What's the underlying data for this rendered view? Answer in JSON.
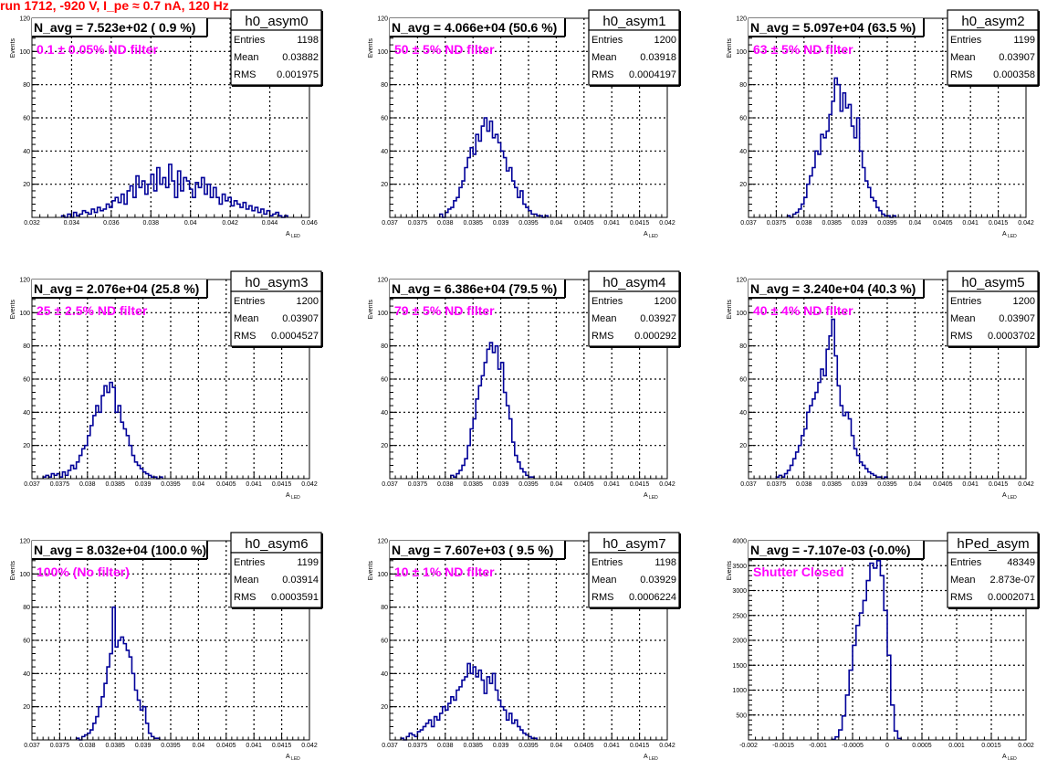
{
  "page": {
    "run_title": "run 1712,  -920 V, I_pe ≈ 0.7 nA, 120 Hz"
  },
  "style": {
    "hist_color": "#000099",
    "label_color": "#ff00ff",
    "title_color": "#ff0000"
  },
  "chart_data": [
    {
      "type": "histogram",
      "name": "h0_asym0",
      "nlabel": "N_avg = 7.523e+02 ( 0.9 %)",
      "filter_label": "0.1 ± 0.05% ND filter",
      "stats": {
        "entries_label": "Entries",
        "entries": "1198",
        "mean_label": "Mean",
        "mean": "0.03882",
        "rms_label": "RMS",
        "rms": "0.001975"
      },
      "xlabel": "A_LED",
      "ylabel": "Events",
      "xlim": [
        0.032,
        0.046
      ],
      "ylim": [
        0,
        120
      ],
      "xticks": [
        0.032,
        0.034,
        0.036,
        0.038,
        0.04,
        0.042,
        0.044,
        0.046
      ],
      "xticklabels": [
        "0.032",
        "0.034",
        "0.036",
        "0.038",
        "0.04",
        "0.042",
        "0.044",
        "0.046"
      ],
      "yticks": [
        20,
        40,
        60,
        80,
        100,
        120
      ],
      "yticklabels": [
        "20",
        "40",
        "60",
        "80",
        "100",
        "120"
      ],
      "bin_start": 0.0335,
      "bin_width": 0.00015,
      "values": [
        1,
        0,
        2,
        0,
        3,
        1,
        2,
        4,
        3,
        2,
        5,
        3,
        6,
        4,
        5,
        8,
        6,
        10,
        12,
        9,
        14,
        8,
        16,
        19,
        12,
        25,
        18,
        22,
        14,
        20,
        26,
        16,
        30,
        20,
        24,
        18,
        32,
        22,
        12,
        28,
        16,
        24,
        22,
        17,
        12,
        21,
        18,
        24,
        14,
        20,
        12,
        18,
        12,
        8,
        14,
        10,
        12,
        7,
        10,
        8,
        6,
        9,
        5,
        7,
        4,
        6,
        3,
        5,
        2,
        4,
        1,
        2,
        3,
        1,
        0,
        1
      ]
    },
    {
      "type": "histogram",
      "name": "h0_asym1",
      "nlabel": "N_avg = 4.066e+04 (50.6 %)",
      "filter_label": "50 ± 5% ND filter",
      "stats": {
        "entries_label": "Entries",
        "entries": "1200",
        "mean_label": "Mean",
        "mean": "0.03918",
        "rms_label": "RMS",
        "rms": "0.0004197"
      },
      "xlabel": "A_LED",
      "ylabel": "Events",
      "xlim": [
        0.037,
        0.042
      ],
      "ylim": [
        0,
        120
      ],
      "xticks": [
        0.037,
        0.0375,
        0.038,
        0.0385,
        0.039,
        0.0395,
        0.04,
        0.0405,
        0.041,
        0.0415,
        0.042
      ],
      "xticklabels": [
        "0.037",
        "0.0375",
        "0.038",
        "0.0385",
        "0.039",
        "0.0395",
        "0.04",
        "0.0405",
        "0.041",
        "0.0415",
        "0.042"
      ],
      "yticks": [
        20,
        40,
        60,
        80,
        100,
        120
      ],
      "yticklabels": [
        "20",
        "40",
        "60",
        "80",
        "100",
        "120"
      ],
      "bin_start": 0.0379,
      "bin_width": 5e-05,
      "values": [
        2,
        0,
        3,
        5,
        6,
        10,
        12,
        18,
        22,
        30,
        36,
        42,
        38,
        50,
        46,
        55,
        60,
        52,
        58,
        48,
        50,
        45,
        40,
        36,
        28,
        30,
        22,
        18,
        12,
        16,
        8,
        6,
        4,
        2,
        2,
        1,
        1,
        0,
        1
      ]
    },
    {
      "type": "histogram",
      "name": "h0_asym2",
      "nlabel": "N_avg = 5.097e+04 (63.5 %)",
      "filter_label": "63 ± 5% ND filter",
      "stats": {
        "entries_label": "Entries",
        "entries": "1199",
        "mean_label": "Mean",
        "mean": "0.03907",
        "rms_label": "RMS",
        "rms": "0.000358"
      },
      "xlabel": "A_LED",
      "ylabel": "Events",
      "xlim": [
        0.037,
        0.042
      ],
      "ylim": [
        0,
        120
      ],
      "xticks": [
        0.037,
        0.0375,
        0.038,
        0.0385,
        0.039,
        0.0395,
        0.04,
        0.0405,
        0.041,
        0.0415,
        0.042
      ],
      "xticklabels": [
        "0.037",
        "0.0375",
        "0.038",
        "0.0385",
        "0.039",
        "0.0395",
        "0.04",
        "0.0405",
        "0.041",
        "0.0415",
        "0.042"
      ],
      "yticks": [
        20,
        40,
        60,
        80,
        100,
        120
      ],
      "yticklabels": [
        "20",
        "40",
        "60",
        "80",
        "100",
        "120"
      ],
      "bin_start": 0.0377,
      "bin_width": 5e-05,
      "values": [
        1,
        0,
        2,
        3,
        5,
        8,
        12,
        20,
        25,
        30,
        40,
        38,
        50,
        48,
        52,
        62,
        70,
        84,
        80,
        64,
        75,
        66,
        68,
        55,
        48,
        60,
        40,
        30,
        22,
        18,
        12,
        10,
        6,
        4,
        2,
        1,
        1,
        0,
        1
      ]
    },
    {
      "type": "histogram",
      "name": "h0_asym3",
      "nlabel": "N_avg = 2.076e+04 (25.8 %)",
      "filter_label": "25 ± 2.5% ND filter",
      "stats": {
        "entries_label": "Entries",
        "entries": "1200",
        "mean_label": "Mean",
        "mean": "0.03907",
        "rms_label": "RMS",
        "rms": "0.0004527"
      },
      "xlabel": "A_LED",
      "ylabel": "Events",
      "xlim": [
        0.037,
        0.042
      ],
      "ylim": [
        0,
        120
      ],
      "xticks": [
        0.037,
        0.0375,
        0.038,
        0.0385,
        0.039,
        0.0395,
        0.04,
        0.0405,
        0.041,
        0.0415,
        0.042
      ],
      "xticklabels": [
        "0.037",
        "0.0375",
        "0.038",
        "0.0385",
        "0.039",
        "0.0395",
        "0.04",
        "0.0405",
        "0.041",
        "0.0415",
        "0.042"
      ],
      "yticks": [
        20,
        40,
        60,
        80,
        100,
        120
      ],
      "yticklabels": [
        "20",
        "40",
        "60",
        "80",
        "100",
        "120"
      ],
      "bin_start": 0.0372,
      "bin_width": 5e-05,
      "values": [
        1,
        2,
        1,
        3,
        2,
        3,
        1,
        4,
        2,
        5,
        8,
        6,
        10,
        14,
        18,
        20,
        26,
        32,
        38,
        44,
        40,
        50,
        56,
        52,
        58,
        55,
        40,
        44,
        34,
        30,
        26,
        20,
        14,
        10,
        8,
        6,
        4,
        3,
        2,
        1,
        1,
        0,
        1
      ]
    },
    {
      "type": "histogram",
      "name": "h0_asym4",
      "nlabel": "N_avg = 6.386e+04 (79.5 %)",
      "filter_label": "79 ± 5% ND filter",
      "stats": {
        "entries_label": "Entries",
        "entries": "1200",
        "mean_label": "Mean",
        "mean": "0.03927",
        "rms_label": "RMS",
        "rms": "0.000292"
      },
      "xlabel": "A_LED",
      "ylabel": "Events",
      "xlim": [
        0.037,
        0.042
      ],
      "ylim": [
        0,
        120
      ],
      "xticks": [
        0.037,
        0.0375,
        0.038,
        0.0385,
        0.039,
        0.0395,
        0.04,
        0.0405,
        0.041,
        0.0415,
        0.042
      ],
      "xticklabels": [
        "0.037",
        "0.0375",
        "0.038",
        "0.0385",
        "0.039",
        "0.0395",
        "0.04",
        "0.0405",
        "0.041",
        "0.0415",
        "0.042"
      ],
      "yticks": [
        20,
        40,
        60,
        80,
        100,
        120
      ],
      "yticklabels": [
        "20",
        "40",
        "60",
        "80",
        "100",
        "120"
      ],
      "bin_start": 0.0381,
      "bin_width": 5e-05,
      "values": [
        2,
        1,
        3,
        5,
        8,
        12,
        20,
        30,
        36,
        48,
        56,
        62,
        70,
        78,
        82,
        76,
        80,
        66,
        70,
        52,
        44,
        36,
        22,
        14,
        10,
        6,
        4,
        2,
        1,
        1
      ]
    },
    {
      "type": "histogram",
      "name": "h0_asym5",
      "nlabel": "N_avg = 3.240e+04 (40.3 %)",
      "filter_label": "40 ± 4% ND filter",
      "stats": {
        "entries_label": "Entries",
        "entries": "1200",
        "mean_label": "Mean",
        "mean": "0.03907",
        "rms_label": "RMS",
        "rms": "0.0003702"
      },
      "xlabel": "A_LED",
      "ylabel": "Events",
      "xlim": [
        0.037,
        0.042
      ],
      "ylim": [
        0,
        120
      ],
      "xticks": [
        0.037,
        0.0375,
        0.038,
        0.0385,
        0.039,
        0.0395,
        0.04,
        0.0405,
        0.041,
        0.0415,
        0.042
      ],
      "xticklabels": [
        "0.037",
        "0.0375",
        "0.038",
        "0.0385",
        "0.039",
        "0.0395",
        "0.04",
        "0.0405",
        "0.041",
        "0.0415",
        "0.042"
      ],
      "yticks": [
        20,
        40,
        60,
        80,
        100,
        120
      ],
      "yticklabels": [
        "20",
        "40",
        "60",
        "80",
        "100",
        "120"
      ],
      "bin_start": 0.0375,
      "bin_width": 5e-05,
      "values": [
        1,
        2,
        1,
        3,
        5,
        8,
        12,
        16,
        20,
        26,
        30,
        40,
        44,
        48,
        52,
        58,
        66,
        62,
        78,
        86,
        96,
        74,
        56,
        44,
        38,
        40,
        36,
        26,
        18,
        14,
        10,
        8,
        6,
        4,
        3,
        2,
        1,
        1,
        0,
        1
      ]
    },
    {
      "type": "histogram",
      "name": "h0_asym6",
      "nlabel": "N_avg = 8.032e+04 (100.0 %)",
      "filter_label": "100% (No filter)",
      "stats": {
        "entries_label": "Entries",
        "entries": "1199",
        "mean_label": "Mean",
        "mean": "0.03914",
        "rms_label": "RMS",
        "rms": "0.0003591"
      },
      "xlabel": "A_LED",
      "ylabel": "Events",
      "xlim": [
        0.037,
        0.042
      ],
      "ylim": [
        0,
        120
      ],
      "xticks": [
        0.037,
        0.0375,
        0.038,
        0.0385,
        0.039,
        0.0395,
        0.04,
        0.0405,
        0.041,
        0.0415,
        0.042
      ],
      "xticklabels": [
        "0.037",
        "0.0375",
        "0.038",
        "0.0385",
        "0.039",
        "0.0395",
        "0.04",
        "0.0405",
        "0.041",
        "0.0415",
        "0.042"
      ],
      "yticks": [
        20,
        40,
        60,
        80,
        100,
        120
      ],
      "yticklabels": [
        "20",
        "40",
        "60",
        "80",
        "100",
        "120"
      ],
      "bin_start": 0.0378,
      "bin_width": 5e-05,
      "values": [
        1,
        0,
        2,
        3,
        4,
        6,
        10,
        14,
        20,
        26,
        34,
        44,
        52,
        80,
        56,
        60,
        62,
        58,
        54,
        50,
        40,
        30,
        24,
        18,
        20,
        10,
        4,
        2,
        1,
        1
      ]
    },
    {
      "type": "histogram",
      "name": "h0_asym7",
      "nlabel": "N_avg = 7.607e+03 ( 9.5 %)",
      "filter_label": "10 ± 1% ND filter",
      "stats": {
        "entries_label": "Entries",
        "entries": "1198",
        "mean_label": "Mean",
        "mean": "0.03929",
        "rms_label": "RMS",
        "rms": "0.0006224"
      },
      "xlabel": "A_LED",
      "ylabel": "Events",
      "xlim": [
        0.037,
        0.042
      ],
      "ylim": [
        0,
        120
      ],
      "xticks": [
        0.037,
        0.0375,
        0.038,
        0.0385,
        0.039,
        0.0395,
        0.04,
        0.0405,
        0.041,
        0.0415,
        0.042
      ],
      "xticklabels": [
        "0.037",
        "0.0375",
        "0.038",
        "0.0385",
        "0.039",
        "0.0395",
        "0.04",
        "0.0405",
        "0.041",
        "0.0415",
        "0.042"
      ],
      "yticks": [
        20,
        40,
        60,
        80,
        100,
        120
      ],
      "yticklabels": [
        "20",
        "40",
        "60",
        "80",
        "100",
        "120"
      ],
      "bin_start": 0.0372,
      "bin_width": 5e-05,
      "values": [
        1,
        0,
        2,
        4,
        3,
        2,
        5,
        6,
        8,
        10,
        12,
        8,
        14,
        12,
        16,
        20,
        18,
        22,
        26,
        24,
        30,
        32,
        36,
        38,
        46,
        40,
        44,
        38,
        42,
        36,
        28,
        38,
        34,
        40,
        30,
        24,
        20,
        18,
        12,
        16,
        10,
        12,
        8,
        6,
        4,
        3,
        2,
        1,
        1
      ]
    },
    {
      "type": "histogram",
      "name": "hPed_asym",
      "nlabel": "N_avg = -7.107e-03 (-0.0%)",
      "filter_label": "Shutter Closed",
      "stats": {
        "entries_label": "Entries",
        "entries": "48349",
        "mean_label": "Mean",
        "mean": "2.873e-07",
        "rms_label": "RMS",
        "rms": "0.0002071"
      },
      "xlabel": "A_LED",
      "ylabel": "Events",
      "xlim": [
        -0.002,
        0.002
      ],
      "ylim": [
        0,
        4000
      ],
      "xticks": [
        -0.002,
        -0.0015,
        -0.001,
        -0.0005,
        0,
        0.0005,
        0.001,
        0.0015,
        0.002
      ],
      "xticklabels": [
        "-0.002",
        "-0.0015",
        "-0.001",
        "-0.0005",
        "0",
        "0.0005",
        "0.001",
        "0.0015",
        "0.002"
      ],
      "yticks": [
        500,
        1000,
        1500,
        2000,
        2500,
        3000,
        3500,
        4000
      ],
      "yticklabels": [
        "500",
        "1000",
        "1500",
        "2000",
        "2500",
        "3000",
        "3500",
        "4000"
      ],
      "bin_start": -0.0008,
      "bin_width": 5e-05,
      "values": [
        10,
        60,
        200,
        480,
        900,
        1400,
        1900,
        2300,
        2550,
        2800,
        3200,
        3550,
        3450,
        3600,
        3300,
        2600,
        1700,
        700,
        180,
        30
      ]
    }
  ]
}
